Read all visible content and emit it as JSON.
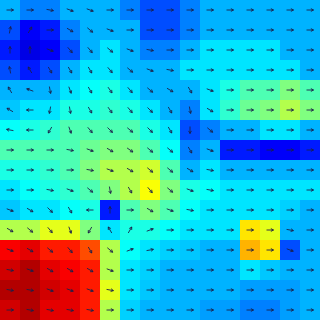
{
  "chart_data": {
    "type": "quiver",
    "xlim": [
      0,
      16
    ],
    "ylim": [
      0,
      16
    ],
    "tick_labels": false,
    "color_range": [
      0,
      1
    ],
    "cells": [
      [
        0.3,
        0.25,
        0.25,
        0.3,
        0.3,
        0.3,
        0.25,
        0.2,
        0.2,
        0.25,
        0.3,
        0.3,
        0.3,
        0.3,
        0.3,
        0.3
      ],
      [
        0.2,
        0.12,
        0.15,
        0.25,
        0.3,
        0.3,
        0.3,
        0.2,
        0.2,
        0.25,
        0.3,
        0.3,
        0.3,
        0.3,
        0.3,
        0.3
      ],
      [
        0.15,
        0.1,
        0.12,
        0.2,
        0.3,
        0.35,
        0.3,
        0.25,
        0.25,
        0.3,
        0.35,
        0.35,
        0.35,
        0.35,
        0.3,
        0.3
      ],
      [
        0.2,
        0.15,
        0.2,
        0.3,
        0.35,
        0.35,
        0.3,
        0.3,
        0.3,
        0.35,
        0.35,
        0.35,
        0.35,
        0.35,
        0.35,
        0.3
      ],
      [
        0.3,
        0.3,
        0.3,
        0.35,
        0.38,
        0.4,
        0.35,
        0.3,
        0.3,
        0.3,
        0.35,
        0.4,
        0.45,
        0.45,
        0.5,
        0.45
      ],
      [
        0.32,
        0.35,
        0.35,
        0.4,
        0.4,
        0.42,
        0.4,
        0.35,
        0.3,
        0.25,
        0.35,
        0.42,
        0.48,
        0.5,
        0.55,
        0.5
      ],
      [
        0.38,
        0.4,
        0.42,
        0.45,
        0.45,
        0.45,
        0.45,
        0.4,
        0.35,
        0.2,
        0.25,
        0.3,
        0.3,
        0.35,
        0.35,
        0.3
      ],
      [
        0.45,
        0.45,
        0.45,
        0.45,
        0.48,
        0.5,
        0.5,
        0.45,
        0.38,
        0.25,
        0.3,
        0.15,
        0.15,
        0.12,
        0.12,
        0.15
      ],
      [
        0.4,
        0.4,
        0.42,
        0.45,
        0.5,
        0.55,
        0.55,
        0.58,
        0.45,
        0.3,
        0.35,
        0.3,
        0.3,
        0.3,
        0.3,
        0.3
      ],
      [
        0.35,
        0.38,
        0.4,
        0.42,
        0.45,
        0.5,
        0.55,
        0.62,
        0.5,
        0.4,
        0.38,
        0.35,
        0.35,
        0.35,
        0.35,
        0.35
      ],
      [
        0.32,
        0.35,
        0.35,
        0.38,
        0.4,
        0.15,
        0.45,
        0.5,
        0.45,
        0.38,
        0.35,
        0.35,
        0.35,
        0.35,
        0.33,
        0.3
      ],
      [
        0.55,
        0.55,
        0.6,
        0.6,
        0.5,
        0.35,
        0.4,
        0.4,
        0.38,
        0.35,
        0.35,
        0.35,
        0.65,
        0.6,
        0.3,
        0.3
      ],
      [
        0.88,
        0.9,
        0.85,
        0.85,
        0.8,
        0.55,
        0.38,
        0.35,
        0.33,
        0.32,
        0.3,
        0.3,
        0.7,
        0.65,
        0.2,
        0.3
      ],
      [
        0.92,
        0.95,
        0.9,
        0.88,
        0.85,
        0.55,
        0.35,
        0.33,
        0.3,
        0.3,
        0.3,
        0.3,
        0.35,
        0.32,
        0.3,
        0.3
      ],
      [
        0.95,
        0.95,
        0.92,
        0.9,
        0.85,
        0.6,
        0.35,
        0.32,
        0.3,
        0.3,
        0.3,
        0.3,
        0.28,
        0.28,
        0.28,
        0.3
      ],
      [
        0.92,
        0.95,
        0.9,
        0.9,
        0.85,
        0.55,
        0.33,
        0.3,
        0.3,
        0.3,
        0.28,
        0.28,
        0.25,
        0.25,
        0.28,
        0.3
      ]
    ],
    "arrow_angles": [
      [
        0,
        0,
        -10,
        -20,
        -20,
        0,
        0,
        0,
        0,
        0,
        0,
        0,
        0,
        0,
        0,
        0
      ],
      [
        80,
        60,
        0,
        -30,
        -40,
        -20,
        0,
        0,
        0,
        0,
        0,
        0,
        0,
        0,
        0,
        0
      ],
      [
        90,
        90,
        -20,
        -50,
        -50,
        -40,
        -20,
        -10,
        0,
        0,
        0,
        0,
        0,
        0,
        0,
        0
      ],
      [
        100,
        120,
        -60,
        -60,
        -60,
        -50,
        -40,
        -20,
        -10,
        0,
        0,
        0,
        0,
        0,
        0,
        0
      ],
      [
        120,
        160,
        -80,
        -70,
        -60,
        -55,
        -50,
        -40,
        -30,
        -60,
        -20,
        0,
        0,
        0,
        0,
        0
      ],
      [
        150,
        180,
        -100,
        -80,
        -60,
        -55,
        -50,
        -45,
        -60,
        -80,
        -30,
        0,
        0,
        0,
        0,
        0
      ],
      [
        170,
        180,
        -120,
        -70,
        -50,
        -45,
        -40,
        -45,
        -60,
        -90,
        -40,
        0,
        0,
        0,
        0,
        0
      ],
      [
        0,
        0,
        0,
        -10,
        -20,
        -30,
        -35,
        -40,
        -40,
        -60,
        -20,
        0,
        0,
        0,
        0,
        0
      ],
      [
        0,
        0,
        0,
        0,
        -10,
        -20,
        -30,
        -40,
        -40,
        -30,
        -10,
        0,
        0,
        0,
        0,
        0
      ],
      [
        0,
        0,
        -10,
        -20,
        -40,
        -80,
        -60,
        -50,
        -40,
        -20,
        -10,
        0,
        0,
        0,
        0,
        0
      ],
      [
        -20,
        -30,
        -45,
        -60,
        180,
        90,
        0,
        -30,
        -20,
        -10,
        0,
        0,
        0,
        0,
        0,
        0
      ],
      [
        -30,
        -40,
        -50,
        -70,
        -120,
        120,
        60,
        20,
        0,
        0,
        0,
        0,
        0,
        0,
        -10,
        0
      ],
      [
        -20,
        -30,
        -40,
        -50,
        -60,
        -40,
        20,
        10,
        0,
        0,
        0,
        0,
        0,
        0,
        -20,
        0
      ],
      [
        -10,
        -20,
        -30,
        -30,
        -30,
        -20,
        0,
        0,
        0,
        0,
        0,
        0,
        0,
        0,
        0,
        0
      ],
      [
        -10,
        -10,
        -20,
        -20,
        -20,
        -10,
        0,
        0,
        0,
        0,
        0,
        0,
        0,
        0,
        0,
        0
      ],
      [
        0,
        -10,
        -10,
        -10,
        -10,
        0,
        0,
        0,
        0,
        0,
        0,
        0,
        0,
        0,
        0,
        0
      ]
    ]
  }
}
